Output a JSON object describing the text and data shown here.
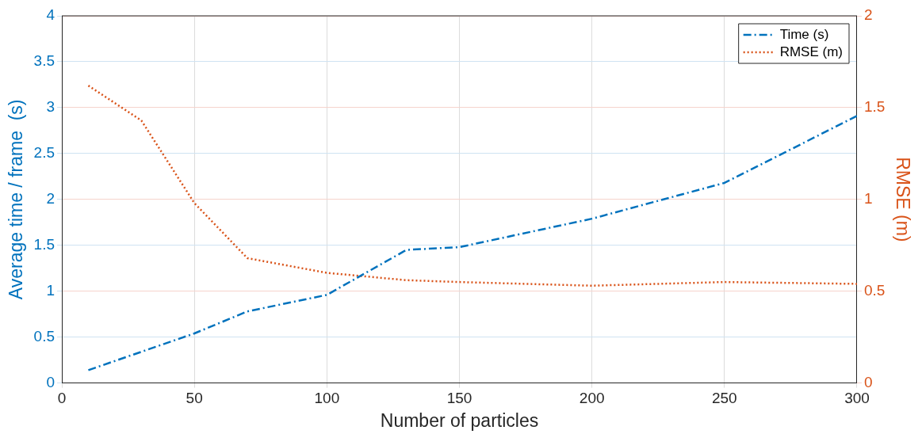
{
  "chart_data": {
    "type": "line",
    "xlabel": "Number of particles",
    "ylabel": "Average time / frame  (s)",
    "y2label": "RMSE (m)",
    "x": [
      10,
      30,
      50,
      70,
      100,
      130,
      150,
      200,
      250,
      300
    ],
    "series": [
      {
        "name": "Time (s)",
        "color": "#0072bd",
        "line_style": "dashed",
        "values": [
          0.14,
          0.34,
          0.54,
          0.78,
          0.96,
          1.45,
          1.48,
          1.79,
          2.18,
          2.91
        ]
      },
      {
        "name": "RMSE (m)",
        "color": "#d95319",
        "line_style": "dotted",
        "axis": "y2",
        "values": [
          1.62,
          1.43,
          0.98,
          0.68,
          0.6,
          0.56,
          0.55,
          0.53,
          0.55,
          0.54
        ]
      }
    ],
    "xlim": [
      0,
      300
    ],
    "xticks": [
      0,
      50,
      100,
      150,
      200,
      250,
      300
    ],
    "ylim": [
      0,
      4
    ],
    "yticks": [
      0,
      0.5,
      1,
      1.5,
      2,
      2.5,
      3,
      3.5,
      4
    ],
    "y2lim": [
      0,
      2
    ],
    "y2ticks": [
      0,
      0.5,
      1,
      1.5,
      2
    ],
    "grid": true,
    "legend": "top right",
    "marker": "none"
  }
}
